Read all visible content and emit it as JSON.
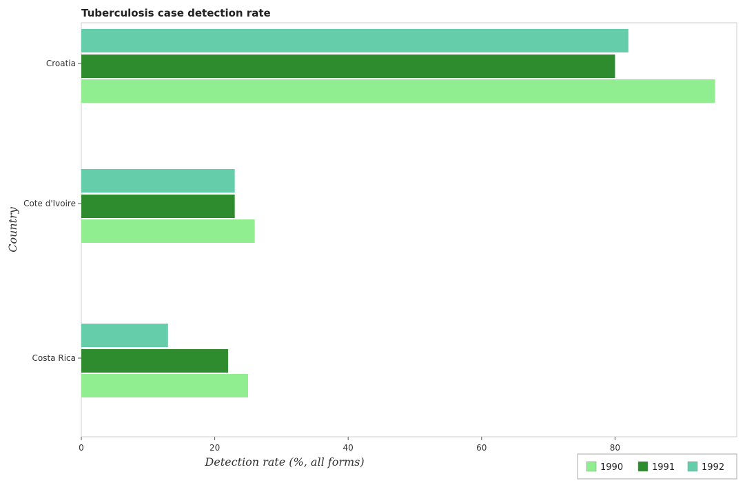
{
  "chart_data": {
    "type": "bar",
    "orientation": "horizontal",
    "title": "Tuberculosis case detection rate",
    "xlabel": "Detection rate (%, all forms)",
    "ylabel": "Country",
    "categories": [
      "Costa Rica",
      "Cote d'Ivoire",
      "Croatia"
    ],
    "series": [
      {
        "name": "1990",
        "color": "#90ee90",
        "values": [
          25,
          26,
          95
        ]
      },
      {
        "name": "1991",
        "color": "#2e8b2e",
        "values": [
          22,
          23,
          80
        ]
      },
      {
        "name": "1992",
        "color": "#66cdaa",
        "values": [
          13,
          23,
          82
        ]
      }
    ],
    "xticks": [
      0,
      20,
      40,
      60,
      80
    ],
    "xlim": [
      0,
      100
    ],
    "grid": false,
    "legend_position": "bottom-right"
  }
}
